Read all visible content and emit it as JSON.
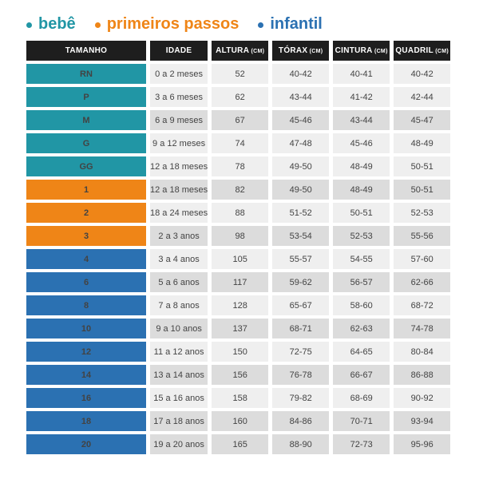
{
  "legend": {
    "items": [
      {
        "label": "bebê",
        "group": "bebe",
        "color": "#2196a5"
      },
      {
        "label": "primeiros passos",
        "group": "primeiros_passos",
        "color": "#ef8517"
      },
      {
        "label": "infantil",
        "group": "infantil",
        "color": "#2b71b2"
      }
    ]
  },
  "colors": {
    "bebe": "#2196a5",
    "primeiros_passos": "#ef8517",
    "infantil": "#2b71b2",
    "header_bg": "#1e1e1e",
    "row_light": "#efefef",
    "row_dark": "#dcdcdc",
    "cell_text": "#434343"
  },
  "chart_data": {
    "type": "table",
    "columns": [
      {
        "label": "TAMANHO",
        "unit": ""
      },
      {
        "label": "IDADE",
        "unit": ""
      },
      {
        "label": "ALTURA",
        "unit": "(CM)"
      },
      {
        "label": "TÓRAX",
        "unit": "(CM)"
      },
      {
        "label": "CINTURA",
        "unit": "(CM)"
      },
      {
        "label": "QUADRIL",
        "unit": "(CM)"
      }
    ],
    "rows": [
      {
        "size": "RN",
        "group": "bebe",
        "idade": "0 a 2 meses",
        "altura": "52",
        "torax": "40-42",
        "cintura": "40-41",
        "quadril": "40-42",
        "shaded": false
      },
      {
        "size": "P",
        "group": "bebe",
        "idade": "3 a 6 meses",
        "altura": "62",
        "torax": "43-44",
        "cintura": "41-42",
        "quadril": "42-44",
        "shaded": false
      },
      {
        "size": "M",
        "group": "bebe",
        "idade": "6 a 9 meses",
        "altura": "67",
        "torax": "45-46",
        "cintura": "43-44",
        "quadril": "45-47",
        "shaded": true
      },
      {
        "size": "G",
        "group": "bebe",
        "idade": "9 a 12 meses",
        "altura": "74",
        "torax": "47-48",
        "cintura": "45-46",
        "quadril": "48-49",
        "shaded": false
      },
      {
        "size": "GG",
        "group": "bebe",
        "idade": "12 a 18 meses",
        "altura": "78",
        "torax": "49-50",
        "cintura": "48-49",
        "quadril": "50-51",
        "shaded": false
      },
      {
        "size": "1",
        "group": "primeiros_passos",
        "idade": "12 a 18 meses",
        "altura": "82",
        "torax": "49-50",
        "cintura": "48-49",
        "quadril": "50-51",
        "shaded": true
      },
      {
        "size": "2",
        "group": "primeiros_passos",
        "idade": "18 a 24 meses",
        "altura": "88",
        "torax": "51-52",
        "cintura": "50-51",
        "quadril": "52-53",
        "shaded": false
      },
      {
        "size": "3",
        "group": "primeiros_passos",
        "idade": "2 a 3 anos",
        "altura": "98",
        "torax": "53-54",
        "cintura": "52-53",
        "quadril": "55-56",
        "shaded": true
      },
      {
        "size": "4",
        "group": "infantil",
        "idade": "3 a 4 anos",
        "altura": "105",
        "torax": "55-57",
        "cintura": "54-55",
        "quadril": "57-60",
        "shaded": false
      },
      {
        "size": "6",
        "group": "infantil",
        "idade": "5 a 6 anos",
        "altura": "117",
        "torax": "59-62",
        "cintura": "56-57",
        "quadril": "62-66",
        "shaded": true
      },
      {
        "size": "8",
        "group": "infantil",
        "idade": "7 a 8 anos",
        "altura": "128",
        "torax": "65-67",
        "cintura": "58-60",
        "quadril": "68-72",
        "shaded": false
      },
      {
        "size": "10",
        "group": "infantil",
        "idade": "9 a 10 anos",
        "altura": "137",
        "torax": "68-71",
        "cintura": "62-63",
        "quadril": "74-78",
        "shaded": true
      },
      {
        "size": "12",
        "group": "infantil",
        "idade": "11 a 12 anos",
        "altura": "150",
        "torax": "72-75",
        "cintura": "64-65",
        "quadril": "80-84",
        "shaded": false
      },
      {
        "size": "14",
        "group": "infantil",
        "idade": "13 a 14 anos",
        "altura": "156",
        "torax": "76-78",
        "cintura": "66-67",
        "quadril": "86-88",
        "shaded": true
      },
      {
        "size": "16",
        "group": "infantil",
        "idade": "15 a 16 anos",
        "altura": "158",
        "torax": "79-82",
        "cintura": "68-69",
        "quadril": "90-92",
        "shaded": false
      },
      {
        "size": "18",
        "group": "infantil",
        "idade": "17 a 18 anos",
        "altura": "160",
        "torax": "84-86",
        "cintura": "70-71",
        "quadril": "93-94",
        "shaded": true
      },
      {
        "size": "20",
        "group": "infantil",
        "idade": "19 a 20 anos",
        "altura": "165",
        "torax": "88-90",
        "cintura": "72-73",
        "quadril": "95-96",
        "shaded": true
      }
    ]
  }
}
